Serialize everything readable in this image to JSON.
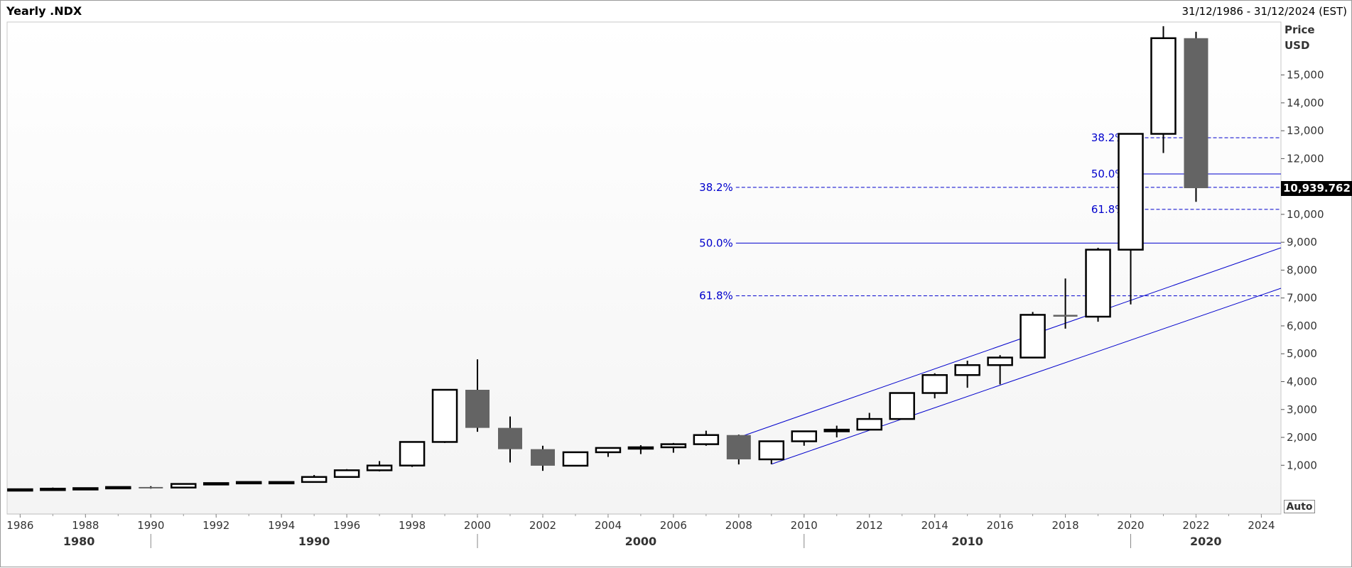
{
  "header": {
    "title": "Yearly .NDX",
    "date_range": "31/12/1986 - 31/12/2024 (EST)"
  },
  "axis": {
    "unit_line1": "Price",
    "unit_line2": "USD",
    "auto_label": "Auto",
    "current_price_label": "10,939.762"
  },
  "colors": {
    "up_fill": "#ffffff",
    "down_fill": "#646464",
    "candle_stroke": "#000000",
    "fib_line": "#0000cc",
    "channel_line": "#0000cc"
  },
  "chart_data": {
    "type": "candlestick",
    "x_axis": {
      "range": [
        1985.6,
        2024.6
      ],
      "tick_labels": [
        "1986",
        "1988",
        "1990",
        "1992",
        "1994",
        "1996",
        "1998",
        "2000",
        "2002",
        "2004",
        "2006",
        "2008",
        "2010",
        "2012",
        "2014",
        "2016",
        "2018",
        "2020",
        "2022",
        "2024"
      ],
      "decade_labels": [
        "1980",
        "1990",
        "2000",
        "2010",
        "2020"
      ]
    },
    "y_axis": {
      "range": [
        -750,
        16900
      ],
      "tick_values": [
        1000,
        2000,
        3000,
        4000,
        5000,
        6000,
        7000,
        8000,
        9000,
        10000,
        11000,
        12000,
        13000,
        14000,
        15000
      ],
      "tick_labels": [
        "1,000",
        "2,000",
        "3,000",
        "4,000",
        "5,000",
        "6,000",
        "7,000",
        "8,000",
        "9,000",
        "10,000",
        "11,000",
        "12,000",
        "13,000",
        "14,000",
        "15,000"
      ]
    },
    "candles": [
      {
        "year": 1986,
        "open": 130,
        "high": 160,
        "low": 120,
        "close": 140
      },
      {
        "year": 1987,
        "open": 140,
        "high": 200,
        "low": 110,
        "close": 160
      },
      {
        "year": 1988,
        "open": 160,
        "high": 190,
        "low": 140,
        "close": 180
      },
      {
        "year": 1989,
        "open": 180,
        "high": 240,
        "low": 170,
        "close": 220
      },
      {
        "year": 1990,
        "open": 220,
        "high": 250,
        "low": 160,
        "close": 200
      },
      {
        "year": 1991,
        "open": 200,
        "high": 330,
        "low": 190,
        "close": 330
      },
      {
        "year": 1992,
        "open": 330,
        "high": 370,
        "low": 300,
        "close": 360
      },
      {
        "year": 1993,
        "open": 360,
        "high": 400,
        "low": 340,
        "close": 400
      },
      {
        "year": 1994,
        "open": 400,
        "high": 420,
        "low": 350,
        "close": 400
      },
      {
        "year": 1995,
        "open": 400,
        "high": 650,
        "low": 400,
        "close": 580
      },
      {
        "year": 1996,
        "open": 580,
        "high": 860,
        "low": 560,
        "close": 820
      },
      {
        "year": 1997,
        "open": 820,
        "high": 1150,
        "low": 780,
        "close": 990
      },
      {
        "year": 1998,
        "open": 990,
        "high": 1840,
        "low": 940,
        "close": 1836
      },
      {
        "year": 1999,
        "open": 1836,
        "high": 3710,
        "low": 1800,
        "close": 3707
      },
      {
        "year": 2000,
        "open": 3707,
        "high": 4800,
        "low": 2200,
        "close": 2341
      },
      {
        "year": 2001,
        "open": 2341,
        "high": 2750,
        "low": 1100,
        "close": 1577
      },
      {
        "year": 2002,
        "open": 1577,
        "high": 1700,
        "low": 800,
        "close": 984
      },
      {
        "year": 2003,
        "open": 984,
        "high": 1470,
        "low": 960,
        "close": 1467
      },
      {
        "year": 2004,
        "open": 1467,
        "high": 1630,
        "low": 1300,
        "close": 1621
      },
      {
        "year": 2005,
        "open": 1621,
        "high": 1720,
        "low": 1400,
        "close": 1645
      },
      {
        "year": 2006,
        "open": 1645,
        "high": 1800,
        "low": 1450,
        "close": 1756
      },
      {
        "year": 2007,
        "open": 1756,
        "high": 2240,
        "low": 1700,
        "close": 2084
      },
      {
        "year": 2008,
        "open": 2084,
        "high": 2100,
        "low": 1030,
        "close": 1212
      },
      {
        "year": 2009,
        "open": 1212,
        "high": 1880,
        "low": 1040,
        "close": 1860
      },
      {
        "year": 2010,
        "open": 1860,
        "high": 2230,
        "low": 1700,
        "close": 2217
      },
      {
        "year": 2011,
        "open": 2217,
        "high": 2420,
        "low": 2000,
        "close": 2277
      },
      {
        "year": 2012,
        "open": 2277,
        "high": 2880,
        "low": 2300,
        "close": 2660
      },
      {
        "year": 2013,
        "open": 2660,
        "high": 3600,
        "low": 2670,
        "close": 3592
      },
      {
        "year": 2014,
        "open": 3592,
        "high": 4300,
        "low": 3400,
        "close": 4236
      },
      {
        "year": 2015,
        "open": 4236,
        "high": 4750,
        "low": 3780,
        "close": 4593
      },
      {
        "year": 2016,
        "open": 4593,
        "high": 4950,
        "low": 3900,
        "close": 4863
      },
      {
        "year": 2017,
        "open": 4863,
        "high": 6500,
        "low": 4860,
        "close": 6396
      },
      {
        "year": 2018,
        "open": 6396,
        "high": 7700,
        "low": 5900,
        "close": 6330
      },
      {
        "year": 2019,
        "open": 6330,
        "high": 8800,
        "low": 6150,
        "close": 8733
      },
      {
        "year": 2020,
        "open": 8733,
        "high": 12900,
        "low": 6770,
        "close": 12888
      },
      {
        "year": 2021,
        "open": 12888,
        "high": 16750,
        "low": 12200,
        "close": 16320
      },
      {
        "year": 2022,
        "open": 16320,
        "high": 16550,
        "low": 10450,
        "close": 10940
      }
    ],
    "fibonacci": [
      {
        "label": "38.2%",
        "value": 12750,
        "start_year": 2020,
        "style": "dashed"
      },
      {
        "label": "50.0%",
        "value": 11450,
        "start_year": 2020,
        "style": "solid"
      },
      {
        "label": "61.8%",
        "value": 10180,
        "start_year": 2020,
        "style": "dashed"
      },
      {
        "label": "38.2%",
        "value": 10970,
        "start_year": 2008,
        "style": "dashed"
      },
      {
        "label": "50.0%",
        "value": 8970,
        "start_year": 2008,
        "style": "solid"
      },
      {
        "label": "61.8%",
        "value": 7080,
        "start_year": 2008,
        "style": "dashed"
      }
    ],
    "channel": [
      {
        "x1": 2008,
        "y1": 2000,
        "x2": 2024.6,
        "y2": 8800
      },
      {
        "x1": 2009,
        "y1": 1040,
        "x2": 2024.6,
        "y2": 7350
      }
    ],
    "current_price": 10939.762
  }
}
